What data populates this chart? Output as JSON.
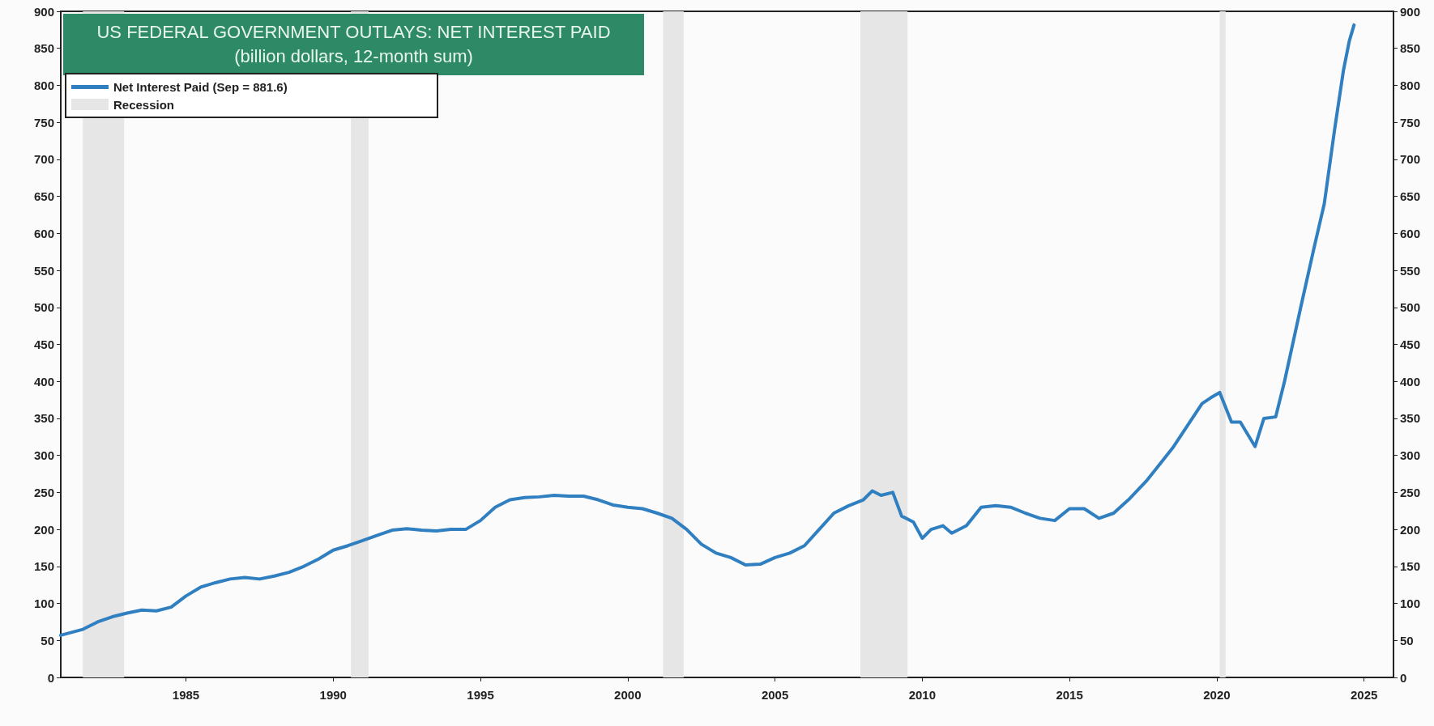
{
  "chart_data": {
    "type": "line",
    "title": "US FEDERAL GOVERNMENT OUTLAYS: NET INTEREST PAID",
    "subtitle": "(billion dollars, 12-month sum)",
    "xlim": [
      1980.75,
      2026
    ],
    "xticks": [
      1985,
      1990,
      1995,
      2000,
      2005,
      2010,
      2015,
      2020,
      2025
    ],
    "ylim": [
      0,
      900
    ],
    "yticks": [
      0,
      50,
      100,
      150,
      200,
      250,
      300,
      350,
      400,
      450,
      500,
      550,
      600,
      650,
      700,
      750,
      800,
      850,
      900
    ],
    "y2lim": [
      0,
      900
    ],
    "y2ticks": [
      0,
      50,
      100,
      150,
      200,
      250,
      300,
      350,
      400,
      450,
      500,
      550,
      600,
      650,
      700,
      750,
      800,
      850,
      900
    ],
    "grid": false,
    "legend": "top left",
    "marker": "none",
    "line_style": "solid",
    "bands": [
      {
        "axis": "x",
        "from": 1981.5,
        "to": 1982.9,
        "label": "Recession",
        "color": "#e6e6e6"
      },
      {
        "axis": "x",
        "from": 1990.6,
        "to": 1991.2,
        "color": "#e6e6e6"
      },
      {
        "axis": "x",
        "from": 2001.2,
        "to": 2001.9,
        "color": "#e6e6e6"
      },
      {
        "axis": "x",
        "from": 2007.9,
        "to": 2009.5,
        "color": "#e6e6e6"
      },
      {
        "axis": "x",
        "from": 2020.1,
        "to": 2020.3,
        "color": "#e6e6e6"
      }
    ],
    "series": [
      {
        "name": "Net Interest Paid (Sep = 881.6)",
        "color": "#2f7fc1",
        "x": [
          1980.75,
          1981.5,
          1982,
          1982.5,
          1983,
          1983.5,
          1984,
          1984.5,
          1985,
          1985.5,
          1986,
          1986.5,
          1987,
          1987.5,
          1988,
          1988.5,
          1989,
          1989.5,
          1990,
          1990.5,
          1991,
          1991.5,
          1992,
          1992.5,
          1993,
          1993.5,
          1994,
          1994.5,
          1995,
          1995.5,
          1996,
          1996.5,
          1997,
          1997.5,
          1998,
          1998.5,
          1999,
          1999.5,
          2000,
          2000.5,
          2001,
          2001.5,
          2002,
          2002.5,
          2003,
          2003.5,
          2004,
          2004.5,
          2005,
          2005.5,
          2006,
          2006.5,
          2007,
          2007.5,
          2008,
          2008.3,
          2008.6,
          2009,
          2009.3,
          2009.7,
          2010,
          2010.3,
          2010.7,
          2011,
          2011.5,
          2012,
          2012.5,
          2013,
          2013.5,
          2014,
          2014.5,
          2015,
          2015.5,
          2016,
          2016.5,
          2017,
          2017.6,
          2018,
          2018.5,
          2019,
          2019.5,
          2019.8,
          2020.1,
          2020.5,
          2020.8,
          2021.3,
          2021.6,
          2022,
          2022.3,
          2022.85,
          2023.3,
          2023.65,
          2024,
          2024.3,
          2024.5,
          2024.66
        ],
        "values": [
          57,
          65,
          75,
          82,
          87,
          91,
          90,
          95,
          110,
          122,
          128,
          133,
          135,
          133,
          137,
          142,
          150,
          160,
          172,
          178,
          185,
          192,
          199,
          201,
          199,
          198,
          200,
          200,
          212,
          230,
          240,
          243,
          244,
          246,
          245,
          245,
          240,
          233,
          230,
          228,
          222,
          215,
          200,
          180,
          168,
          162,
          152,
          153,
          162,
          168,
          178,
          200,
          222,
          232,
          240,
          252,
          246,
          250,
          218,
          210,
          188,
          200,
          205,
          195,
          205,
          230,
          232,
          230,
          222,
          215,
          212,
          228,
          228,
          215,
          222,
          240,
          265,
          285,
          310,
          340,
          370,
          378,
          385,
          345,
          345,
          312,
          350,
          352,
          400,
          500,
          580,
          640,
          740,
          820,
          860,
          881.6
        ]
      }
    ]
  }
}
